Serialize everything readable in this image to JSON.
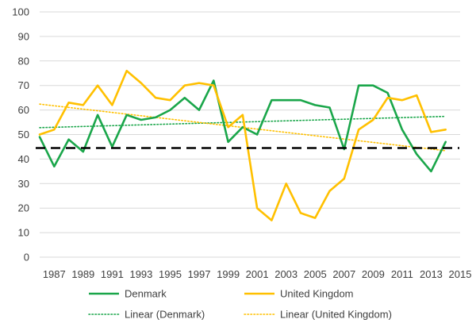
{
  "chart_data": {
    "type": "line",
    "ylim": [
      0,
      100
    ],
    "yticks": [
      0,
      10,
      20,
      30,
      40,
      50,
      60,
      70,
      80,
      90,
      100
    ],
    "xlim": [
      1986,
      2015
    ],
    "xticks": [
      1987,
      1989,
      1991,
      1993,
      1995,
      1997,
      1999,
      2001,
      2003,
      2005,
      2007,
      2009,
      2011,
      2013,
      2015
    ],
    "x": [
      1986,
      1987,
      1988,
      1989,
      1990,
      1991,
      1992,
      1993,
      1994,
      1995,
      1996,
      1997,
      1998,
      1999,
      2000,
      2001,
      2002,
      2003,
      2004,
      2005,
      2006,
      2007,
      2008,
      2009,
      2010,
      2011,
      2012,
      2013,
      2014
    ],
    "series": [
      {
        "name": "Denmark",
        "color": "#1aa64a",
        "style": "solid",
        "values": [
          49,
          37,
          48,
          43,
          58,
          45,
          58,
          56,
          57,
          60,
          65,
          60,
          72,
          47,
          53,
          50,
          64,
          64,
          64,
          62,
          61,
          44,
          70,
          70,
          67,
          52,
          42,
          35,
          47
        ]
      },
      {
        "name": "United Kingdom",
        "color": "#ffc000",
        "style": "solid",
        "values": [
          50,
          52,
          63,
          62,
          70,
          62,
          76,
          71,
          65,
          64,
          70,
          71,
          70,
          53,
          58,
          20,
          15,
          30,
          18,
          16,
          27,
          32,
          52,
          56,
          65,
          64,
          66,
          51,
          52
        ]
      }
    ],
    "trendlines": [
      {
        "name": "Linear (Denmark)",
        "color": "#1aa64a",
        "style": "dotted",
        "start": [
          1986,
          52.8
        ],
        "end": [
          2014,
          57.4
        ]
      },
      {
        "name": "Linear (United Kingdom)",
        "color": "#ffc000",
        "style": "dotted",
        "start": [
          1986,
          62.4
        ],
        "end": [
          2014,
          43.4
        ]
      }
    ],
    "reference_line": {
      "y": 44.5,
      "color": "#000000",
      "style": "dashed"
    },
    "grid": true,
    "legend_position": "bottom"
  }
}
